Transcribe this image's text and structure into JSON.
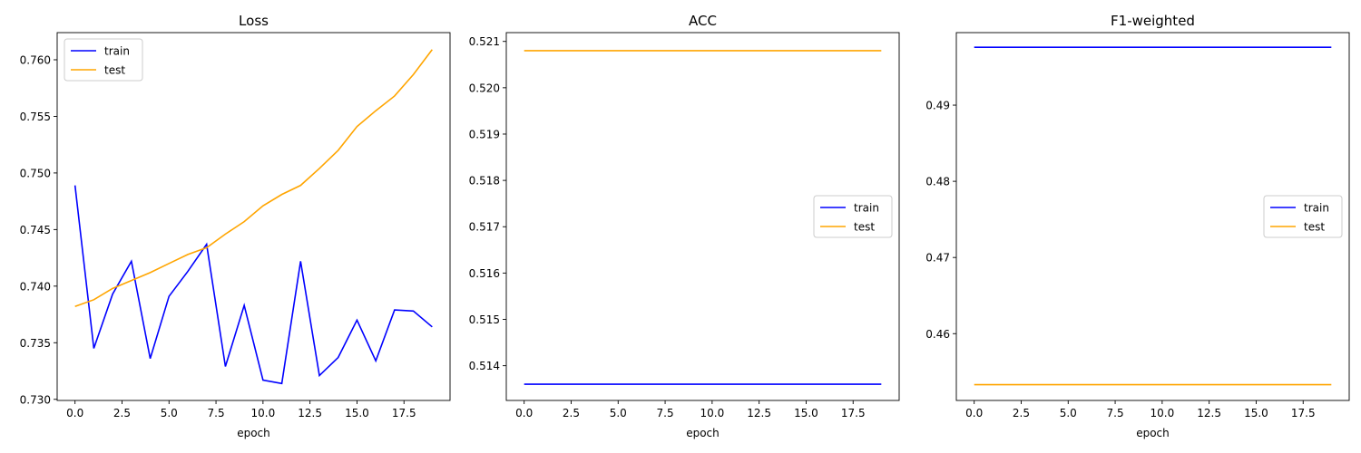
{
  "chart_data": [
    {
      "type": "line",
      "title": "Loss",
      "xlabel": "epoch",
      "ylabel": "",
      "xlim": [
        -0.95,
        19.95
      ],
      "ylim": [
        0.7299,
        0.7624
      ],
      "xticks": [
        0.0,
        2.5,
        5.0,
        7.5,
        10.0,
        12.5,
        15.0,
        17.5
      ],
      "xtick_labels": [
        "0.0",
        "2.5",
        "5.0",
        "7.5",
        "10.0",
        "12.5",
        "15.0",
        "17.5"
      ],
      "yticks": [
        0.73,
        0.735,
        0.74,
        0.745,
        0.75,
        0.755,
        0.76
      ],
      "ytick_labels": [
        "0.730",
        "0.735",
        "0.740",
        "0.745",
        "0.750",
        "0.755",
        "0.760"
      ],
      "grid": false,
      "legend": "upper-left",
      "x": [
        0,
        1,
        2,
        3,
        4,
        5,
        6,
        7,
        8,
        9,
        10,
        11,
        12,
        13,
        14,
        15,
        16,
        17,
        18,
        19
      ],
      "series": [
        {
          "name": "train",
          "color": "#0000ff",
          "values": [
            0.7489,
            0.7345,
            0.7393,
            0.7422,
            0.7336,
            0.7391,
            0.7413,
            0.7437,
            0.7329,
            0.7383,
            0.7317,
            0.7314,
            0.7422,
            0.7321,
            0.7337,
            0.737,
            0.7334,
            0.7379,
            0.7378,
            0.7364
          ]
        },
        {
          "name": "test",
          "color": "#ffa500",
          "values": [
            0.7382,
            0.7388,
            0.7398,
            0.7405,
            0.7412,
            0.742,
            0.7428,
            0.7434,
            0.7446,
            0.7457,
            0.7471,
            0.7481,
            0.7489,
            0.7504,
            0.752,
            0.7541,
            0.7555,
            0.7568,
            0.7587,
            0.7609
          ]
        }
      ]
    },
    {
      "type": "line",
      "title": "ACC",
      "xlabel": "epoch",
      "ylabel": "",
      "xlim": [
        -0.95,
        19.95
      ],
      "ylim": [
        0.51325,
        0.52119
      ],
      "xticks": [
        0.0,
        2.5,
        5.0,
        7.5,
        10.0,
        12.5,
        15.0,
        17.5
      ],
      "xtick_labels": [
        "0.0",
        "2.5",
        "5.0",
        "7.5",
        "10.0",
        "12.5",
        "15.0",
        "17.5"
      ],
      "yticks": [
        0.514,
        0.515,
        0.516,
        0.517,
        0.518,
        0.519,
        0.52,
        0.521
      ],
      "ytick_labels": [
        "0.514",
        "0.515",
        "0.516",
        "0.517",
        "0.518",
        "0.519",
        "0.520",
        "0.521"
      ],
      "grid": false,
      "legend": "center-right",
      "x": [
        0,
        1,
        2,
        3,
        4,
        5,
        6,
        7,
        8,
        9,
        10,
        11,
        12,
        13,
        14,
        15,
        16,
        17,
        18,
        19
      ],
      "series": [
        {
          "name": "train",
          "color": "#0000ff",
          "values": [
            0.5136,
            0.5136,
            0.5136,
            0.5136,
            0.5136,
            0.5136,
            0.5136,
            0.5136,
            0.5136,
            0.5136,
            0.5136,
            0.5136,
            0.5136,
            0.5136,
            0.5136,
            0.5136,
            0.5136,
            0.5136,
            0.5136,
            0.5136
          ]
        },
        {
          "name": "test",
          "color": "#ffa500",
          "values": [
            0.5208,
            0.5208,
            0.5208,
            0.5208,
            0.5208,
            0.5208,
            0.5208,
            0.5208,
            0.5208,
            0.5208,
            0.5208,
            0.5208,
            0.5208,
            0.5208,
            0.5208,
            0.5208,
            0.5208,
            0.5208,
            0.5208,
            0.5208
          ]
        }
      ]
    },
    {
      "type": "line",
      "title": "F1-weighted",
      "xlabel": "epoch",
      "ylabel": "",
      "xlim": [
        -0.95,
        19.95
      ],
      "ylim": [
        0.45123,
        0.49952
      ],
      "xticks": [
        0.0,
        2.5,
        5.0,
        7.5,
        10.0,
        12.5,
        15.0,
        17.5
      ],
      "xtick_labels": [
        "0.0",
        "2.5",
        "5.0",
        "7.5",
        "10.0",
        "12.5",
        "15.0",
        "17.5"
      ],
      "yticks": [
        0.46,
        0.47,
        0.48,
        0.49
      ],
      "ytick_labels": [
        "0.46",
        "0.47",
        "0.48",
        "0.49"
      ],
      "grid": false,
      "legend": "center-right",
      "x": [
        0,
        1,
        2,
        3,
        4,
        5,
        6,
        7,
        8,
        9,
        10,
        11,
        12,
        13,
        14,
        15,
        16,
        17,
        18,
        19
      ],
      "series": [
        {
          "name": "train",
          "color": "#0000ff",
          "values": [
            0.4976,
            0.4976,
            0.4976,
            0.4976,
            0.4976,
            0.4976,
            0.4976,
            0.4976,
            0.4976,
            0.4976,
            0.4976,
            0.4976,
            0.4976,
            0.4976,
            0.4976,
            0.4976,
            0.4976,
            0.4976,
            0.4976,
            0.4976
          ]
        },
        {
          "name": "test",
          "color": "#ffa500",
          "values": [
            0.4533,
            0.4533,
            0.4533,
            0.4533,
            0.4533,
            0.4533,
            0.4533,
            0.4533,
            0.4533,
            0.4533,
            0.4533,
            0.4533,
            0.4533,
            0.4533,
            0.4533,
            0.4533,
            0.4533,
            0.4533,
            0.4533,
            0.4533
          ]
        }
      ]
    }
  ]
}
